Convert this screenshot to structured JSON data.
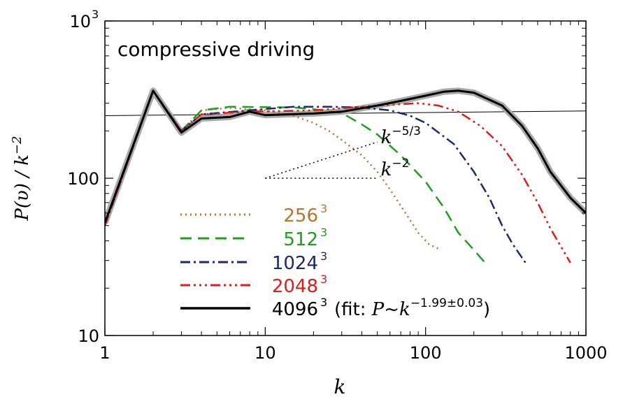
{
  "chart_data": {
    "type": "line",
    "title": "compressive driving",
    "xlabel": "k",
    "ylabel": "P(v) / k^-2",
    "xscale": "log",
    "yscale": "log",
    "xlim": [
      1,
      1000
    ],
    "ylim": [
      10,
      1000
    ],
    "x_ticks": [
      {
        "value": 1,
        "label": "1"
      },
      {
        "value": 10,
        "label": "10"
      },
      {
        "value": 100,
        "label": "100"
      },
      {
        "value": 1000,
        "label": "1000"
      }
    ],
    "y_ticks": [
      {
        "value": 10,
        "label": "10"
      },
      {
        "value": 100,
        "label": "100"
      },
      {
        "value": 1000,
        "label": "10",
        "sup": "3"
      }
    ],
    "legend": {
      "placement": "bottom-left",
      "fit_note": {
        "prefix": "(fit: ",
        "var": "P",
        "sim": "~",
        "base": "k",
        "exponent": "-1.99±0.03",
        "suffix": ")"
      }
    },
    "series": [
      {
        "name": "256",
        "sup": "3",
        "color": "#b8732e",
        "dash": "dotted",
        "points": [
          [
            1,
            50
          ],
          [
            2,
            360
          ],
          [
            3,
            200
          ],
          [
            4,
            270
          ],
          [
            6,
            280
          ],
          [
            10,
            270
          ],
          [
            15,
            250
          ],
          [
            20,
            225
          ],
          [
            25,
            200
          ],
          [
            30,
            175
          ],
          [
            40,
            140
          ],
          [
            50,
            110
          ],
          [
            60,
            85
          ],
          [
            75,
            60
          ],
          [
            90,
            45
          ],
          [
            105,
            38
          ],
          [
            125,
            35
          ]
        ]
      },
      {
        "name": "512",
        "sup": "3",
        "color": "#1f9e1f",
        "dash": "dashed",
        "points": [
          [
            1,
            50
          ],
          [
            2,
            360
          ],
          [
            3,
            200
          ],
          [
            4,
            270
          ],
          [
            6,
            285
          ],
          [
            10,
            283
          ],
          [
            15,
            282
          ],
          [
            20,
            275
          ],
          [
            30,
            260
          ],
          [
            40,
            220
          ],
          [
            50,
            190
          ],
          [
            70,
            140
          ],
          [
            100,
            95
          ],
          [
            130,
            65
          ],
          [
            160,
            45
          ],
          [
            200,
            35
          ],
          [
            235,
            29
          ]
        ]
      },
      {
        "name": "1024",
        "sup": "3",
        "color": "#1a2a6c",
        "dash": "dashdot",
        "points": [
          [
            1,
            50
          ],
          [
            2,
            360
          ],
          [
            3,
            200
          ],
          [
            4,
            255
          ],
          [
            8,
            270
          ],
          [
            15,
            285
          ],
          [
            25,
            285
          ],
          [
            40,
            282
          ],
          [
            60,
            270
          ],
          [
            80,
            250
          ],
          [
            100,
            225
          ],
          [
            150,
            165
          ],
          [
            200,
            110
          ],
          [
            250,
            75
          ],
          [
            300,
            50
          ],
          [
            350,
            38
          ],
          [
            420,
            29
          ]
        ]
      },
      {
        "name": "2048",
        "sup": "3",
        "color": "#e01b1b",
        "dash": "dashdotdotdot",
        "points": [
          [
            1,
            50
          ],
          [
            2,
            360
          ],
          [
            3,
            200
          ],
          [
            4,
            255
          ],
          [
            8,
            265
          ],
          [
            20,
            270
          ],
          [
            50,
            290
          ],
          [
            90,
            300
          ],
          [
            120,
            290
          ],
          [
            160,
            265
          ],
          [
            220,
            215
          ],
          [
            300,
            160
          ],
          [
            400,
            105
          ],
          [
            500,
            70
          ],
          [
            600,
            48
          ],
          [
            800,
            29
          ]
        ]
      },
      {
        "name": "4096",
        "sup": "3",
        "color": "#000000",
        "dash": "solid",
        "points": [
          [
            1,
            52
          ],
          [
            2,
            360
          ],
          [
            3,
            195
          ],
          [
            4,
            240
          ],
          [
            6,
            245
          ],
          [
            8,
            265
          ],
          [
            10,
            252
          ],
          [
            20,
            258
          ],
          [
            30,
            265
          ],
          [
            50,
            290
          ],
          [
            70,
            310
          ],
          [
            100,
            335
          ],
          [
            130,
            355
          ],
          [
            160,
            360
          ],
          [
            200,
            350
          ],
          [
            300,
            290
          ],
          [
            400,
            215
          ],
          [
            500,
            155
          ],
          [
            600,
            110
          ],
          [
            800,
            75
          ],
          [
            1000,
            60
          ]
        ]
      }
    ],
    "reference_lines": [
      {
        "name": "fit",
        "slope": 0.01,
        "through": [
          1,
          250
        ],
        "color": "#000000",
        "width": 1
      },
      {
        "label_base": "k",
        "label_exp": "-5/3",
        "slope": 0.333,
        "from": [
          10,
          100
        ],
        "to": [
          50,
          170
        ],
        "dash": "dotted"
      },
      {
        "label_base": "k",
        "label_exp": "-2",
        "slope": 0,
        "from": [
          10,
          100
        ],
        "to": [
          50,
          100
        ],
        "dash": "dotted"
      }
    ]
  }
}
